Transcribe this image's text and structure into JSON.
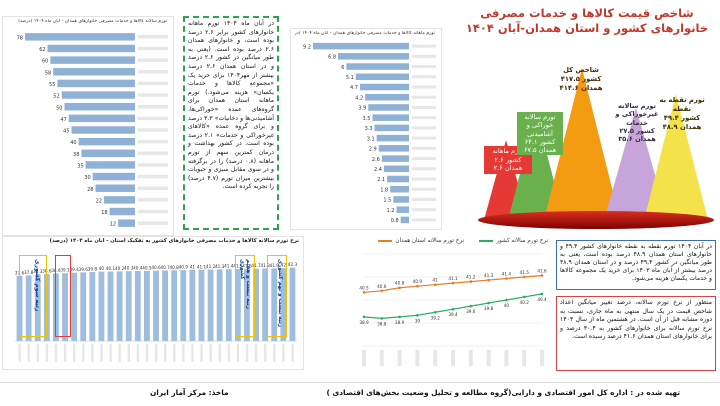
{
  "colors": {
    "title": "#c0392b",
    "bar": "#8fb1d6",
    "green_box": "#2ea44f",
    "red_box": "#d64545",
    "blue_box": "#3d6fb6",
    "peak_monthly": "#e53935",
    "peak_annual_food": "#6ab04c",
    "peak_total": "#f39c12",
    "peak_annual_nonfood": "#c7a4d9",
    "peak_point": "#f4e24b",
    "base": "#a50f15",
    "line_province": "#e67e22",
    "line_country": "#27ae60"
  },
  "title": {
    "line1": "شاخص قیمت کالاها و خدمات مصرفی",
    "line2": "خانوارهای کشور و استان همدان-آبان ۱۴۰۴"
  },
  "peaks": [
    {
      "label": "تورم ماهانه\nکشور ۲.۶\nهمدان ۲.۶",
      "icon": "peak-monthly-icon"
    },
    {
      "label": "تورم سالانه\nخوراکی و\nآشامیدنی\nکشور ۶۴.۱\nهمدان ۶۷.۵",
      "icon": "peak-food-icon"
    },
    {
      "label": "شاخص کل\nکشور ۴۱۷.۵\nهمدان ۴۱۴.۶",
      "icon": "peak-total-icon"
    },
    {
      "label": "تورم سالانه\nغیرخوراکی و\nخدمات\nکشور ۲۷.۵\nهمدان ۳۵.۶",
      "icon": "peak-nonfood-icon"
    },
    {
      "label": "تورم نقطه به\nنقطه\nکشور ۴۹.۴\nهمدان ۴۸.۹",
      "icon": "peak-point-icon"
    }
  ],
  "green_box_text": "در آبان ماه ۱۴۰۴ تورم ماهانه خانوارهای کشور برابر ۲.۶ درصد بوده است، و خانوارهای همدان ۲.۶ درصد بوده است. (یعنی به طور میانگین در کشور ۲.۶ درصد و در استان همدان ۲.۶ درصد بیشتر از مهر۱۴۰۴ برای خرید یک «مجموعه کالاها و خدمات یکسان» هزینه می‌شود.) تورم ماهانه استان همدان برای گروه‌های عمده «خوراکی‌ها، آشامیدنی‌ها و دخانیات» ۳.۳ درصد و برای گروه عمده «کالاهای غیرخوراکی و خدمات» ۲.۱ درصد بوده است. در کشور بهداشت و درمان کمترین سهم از تورم ماهانه (۰.۸ درصد) را در برگرفته و در سوی مقابل سبزی و حبوبات بیشترین میزان تورم (۴.۷ درصد) را تجربه کرده است.",
  "blue_box_text": "در آبان ۱۴۰۴ تورم نقطه به نقطه خانوارهای کشور ۴۹.۴ و خانوارهای استان همدان ۴۸.۹ درصد بوده است، یعنی به طور میانگین در کشور ۴۹.۴ درصد و در استان همدان ۴۸.۹ درصد بیشتر از آبان ماه ۱۴۰۳ برای خرید یک مجموعه کالاها و خدمات یکسان هزینه می‌شود.",
  "red_box_text": "منظور از نرخ تورم سالانه، درصد تغییر میانگین اعداد شاخص قیمت در یک سال منتهی به ماه جاری، نسبت به دوره مشابه قبل از آن است. در هشتمین ماه از سال ۱۴۰۴ نرخ تورم سالانه برای خانوارهای کشور به ۴۰.۴ درصد و برای خانوارهای استان همدان ۴۱.۶ درصد رسیده است.",
  "bar_chart_left": {
    "title": "تورم سالانه کالاها و خدمات مصرفی خانوارهای همدان - آبان ماه ۱۴۰۴ (درصد)"
  },
  "bar_chart_mid": {
    "title": "تورم ماهانه کالاها و خدمات مصرفی خانوارهای همدان - آبان ماه ۱۴۰۴ (درصد)"
  },
  "province_chart": {
    "title": "نرخ تورم سالانه کالاها و خدمات مصرفی خانوارهای کشور به تفکیک استان - آبان ماه ۱۴۰۴ (درصد)",
    "highlights": [
      "رتبه سوم کشوری",
      "رتبه بیست و هفتم کشوری",
      "رتبه بیست و نهم کشوری"
    ]
  },
  "line_chart": {
    "legend_province": "نرخ تورم سالانه استان همدان",
    "legend_country": "نرخ تورم سالانه کشور"
  },
  "footer": {
    "prepared_by": "تهیه شده در : اداره کل امور اقتصادی و دارایی(گروه مطالعه و تحلیل وضعیت بخش‌های اقتصادی )",
    "source": "ماخذ: مرکز آمار ایران"
  },
  "chart_data": [
    {
      "type": "bar",
      "orientation": "horizontal",
      "title": "تورم سالانه کالاها و خدمات مصرفی خانوارهای همدان - آبان ماه ۱۴۰۴ (درصد)",
      "values": [
        78,
        62,
        60,
        58,
        55,
        52,
        50,
        47,
        45,
        40,
        38,
        35,
        30,
        28,
        22,
        18,
        12
      ]
    },
    {
      "type": "bar",
      "orientation": "horizontal",
      "title": "تورم ماهانه کالاها و خدمات مصرفی خانوارهای همدان - آبان ماه ۱۴۰۴ (درصد)",
      "values": [
        9.2,
        6.8,
        6.0,
        5.1,
        4.7,
        4.2,
        3.9,
        3.5,
        3.3,
        3.1,
        2.9,
        2.6,
        2.4,
        2.1,
        1.8,
        1.5,
        1.2,
        0.8
      ]
    },
    {
      "type": "bar",
      "title": "نرخ تورم سالانه کالاها و خدمات مصرفی خانوارهای کشور به تفکیک استان - آبان ماه ۱۴۰۴ (درصد)",
      "values": [
        37.6,
        37.8,
        38.3,
        38.6,
        38.9,
        39.1,
        39.4,
        39.6,
        39.8,
        40.0,
        40.1,
        40.2,
        40.3,
        40.4,
        40.5,
        40.6,
        40.7,
        40.8,
        40.9,
        41.0,
        41.1,
        41.2,
        41.3,
        41.4,
        41.5,
        41.6,
        41.7,
        41.8,
        41.9,
        42.0,
        42.3
      ]
    },
    {
      "type": "line",
      "series": [
        {
          "name": "نرخ تورم سالانه استان همدان",
          "values": [
            40.5,
            40.6,
            40.8,
            40.9,
            41.0,
            41.1,
            41.2,
            41.3,
            41.4,
            41.5,
            41.6
          ]
        },
        {
          "name": "نرخ تورم سالانه کشور",
          "values": [
            38.9,
            38.8,
            38.9,
            39.0,
            39.2,
            39.4,
            39.6,
            39.8,
            40.0,
            40.2,
            40.4
          ]
        }
      ]
    }
  ]
}
